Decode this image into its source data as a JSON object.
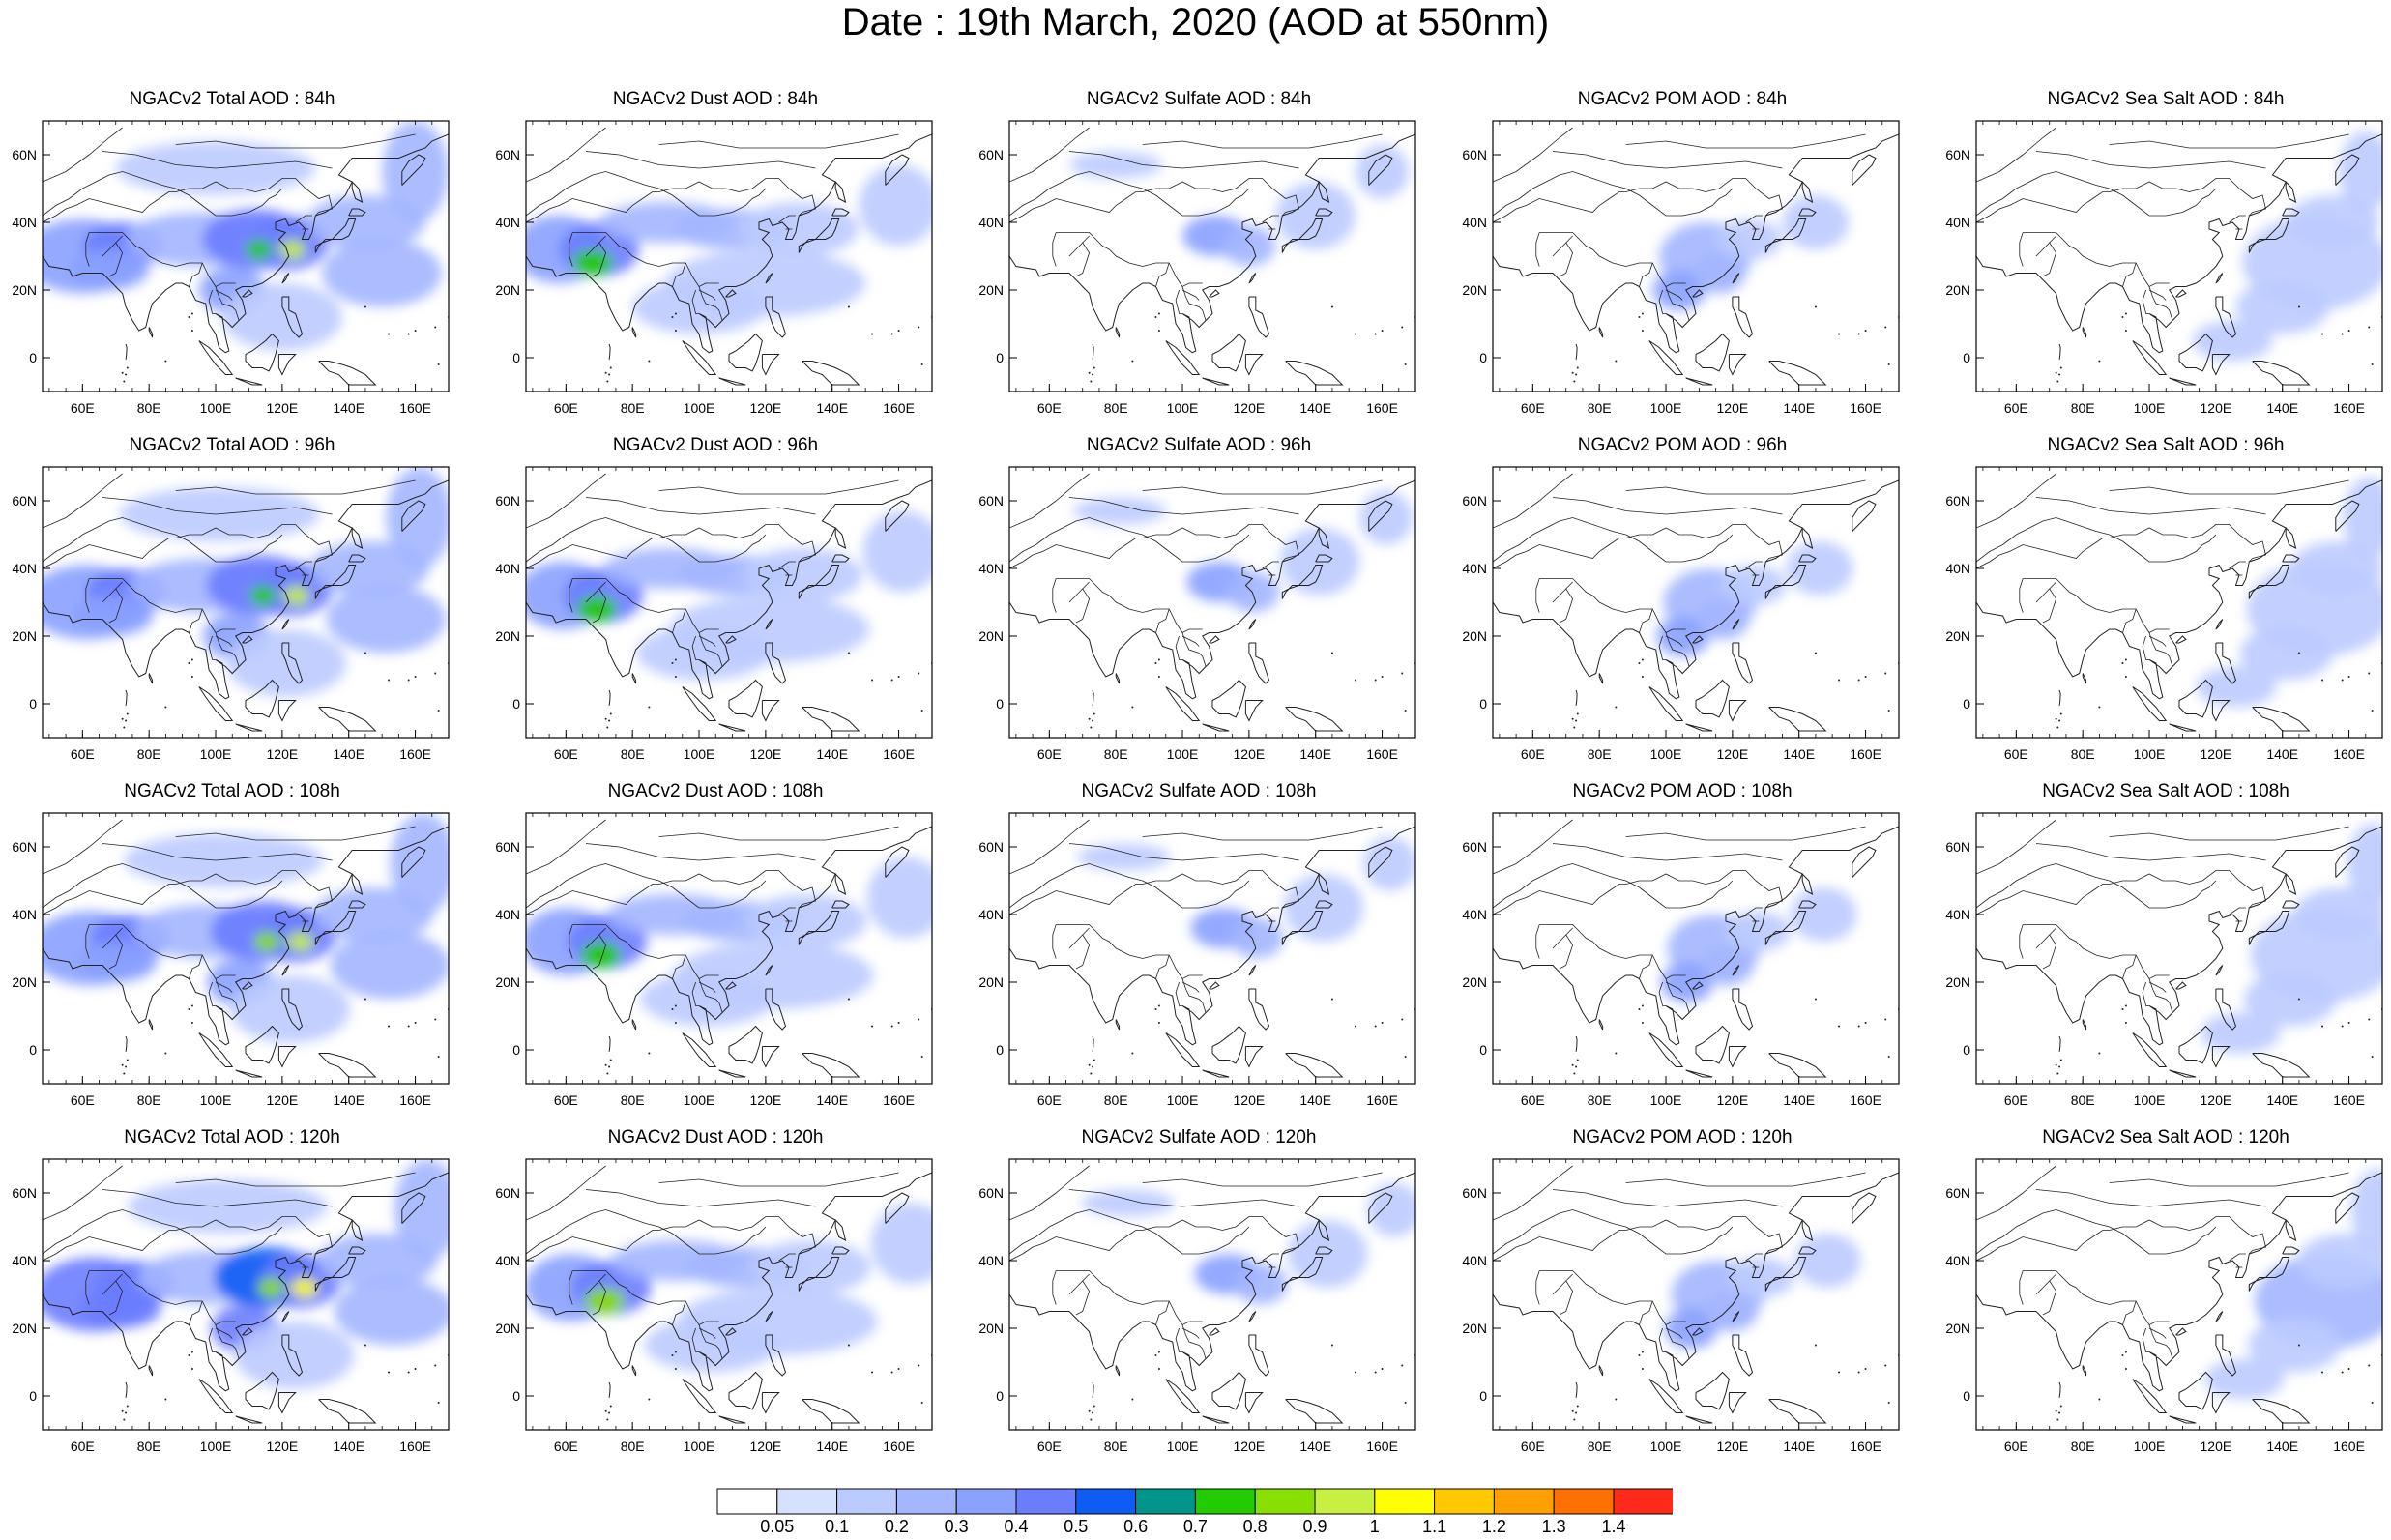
{
  "title": "Date : 19th March, 2020 (AOD at 550nm)",
  "map_extent": {
    "lon": [
      48,
      170
    ],
    "lat": [
      -10,
      70
    ]
  },
  "lon_ticks": [
    {
      "value": 60,
      "label": "60E"
    },
    {
      "value": 80,
      "label": "80E"
    },
    {
      "value": 100,
      "label": "100E"
    },
    {
      "value": 120,
      "label": "120E"
    },
    {
      "value": 140,
      "label": "140E"
    },
    {
      "value": 160,
      "label": "160E"
    }
  ],
  "lat_ticks": [
    {
      "value": 60,
      "label": "60N"
    },
    {
      "value": 40,
      "label": "40N"
    },
    {
      "value": 20,
      "label": "20N"
    },
    {
      "value": 0,
      "label": "0"
    }
  ],
  "panels": [
    [
      "NGACv2 Total AOD : 84h",
      "NGACv2 Dust AOD : 84h",
      "NGACv2 Sulfate AOD : 84h",
      "NGACv2 POM AOD : 84h",
      "NGACv2 Sea Salt AOD : 84h"
    ],
    [
      "NGACv2 Total AOD : 96h",
      "NGACv2 Dust AOD : 96h",
      "NGACv2 Sulfate AOD : 96h",
      "NGACv2 POM AOD : 96h",
      "NGACv2 Sea Salt AOD : 96h"
    ],
    [
      "NGACv2 Total AOD : 108h",
      "NGACv2 Dust AOD : 108h",
      "NGACv2 Sulfate AOD : 108h",
      "NGACv2 POM AOD : 108h",
      "NGACv2 Sea Salt AOD : 108h"
    ],
    [
      "NGACv2 Total AOD : 120h",
      "NGACv2 Dust AOD : 120h",
      "NGACv2 Sulfate AOD : 120h",
      "NGACv2 POM AOD : 120h",
      "NGACv2 Sea Salt  AOD : 120h"
    ]
  ],
  "colorbar": {
    "labels": [
      "0.05",
      "0.1",
      "0.2",
      "0.3",
      "0.4",
      "0.5",
      "0.6",
      "0.7",
      "0.8",
      "0.9",
      "1",
      "1.1",
      "1.2",
      "1.3",
      "1.4"
    ],
    "colors": [
      "#ffffff",
      "#d6e0ff",
      "#bccbff",
      "#a3b6ff",
      "#8aa1ff",
      "#6b7dff",
      "#0f5cf5",
      "#00968c",
      "#22cc00",
      "#88e000",
      "#c8f040",
      "#ffff00",
      "#ffc800",
      "#ffa000",
      "#ff7000",
      "#ff2a1a"
    ]
  }
}
